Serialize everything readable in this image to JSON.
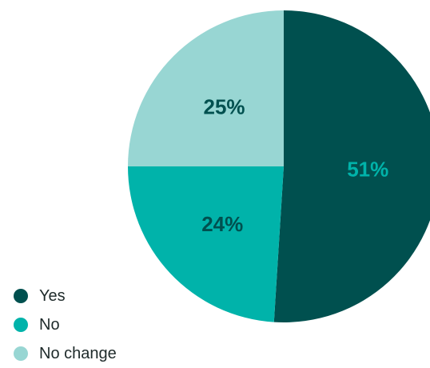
{
  "chart_data": {
    "type": "pie",
    "slices": [
      {
        "name": "Yes",
        "value": 51,
        "label": "51%",
        "color": "#00504f",
        "label_color": "#00b3aa"
      },
      {
        "name": "No",
        "value": 24,
        "label": "24%",
        "color": "#00b3aa",
        "label_color": "#00504f"
      },
      {
        "name": "No change",
        "value": 25,
        "label": "25%",
        "color": "#98d6d3",
        "label_color": "#00504f"
      }
    ],
    "legend_placement": "bottom-left"
  },
  "legend": {
    "items": [
      {
        "label": "Yes",
        "color": "#00504f"
      },
      {
        "label": "No",
        "color": "#00b3aa"
      },
      {
        "label": "No change",
        "color": "#98d6d3"
      }
    ]
  }
}
